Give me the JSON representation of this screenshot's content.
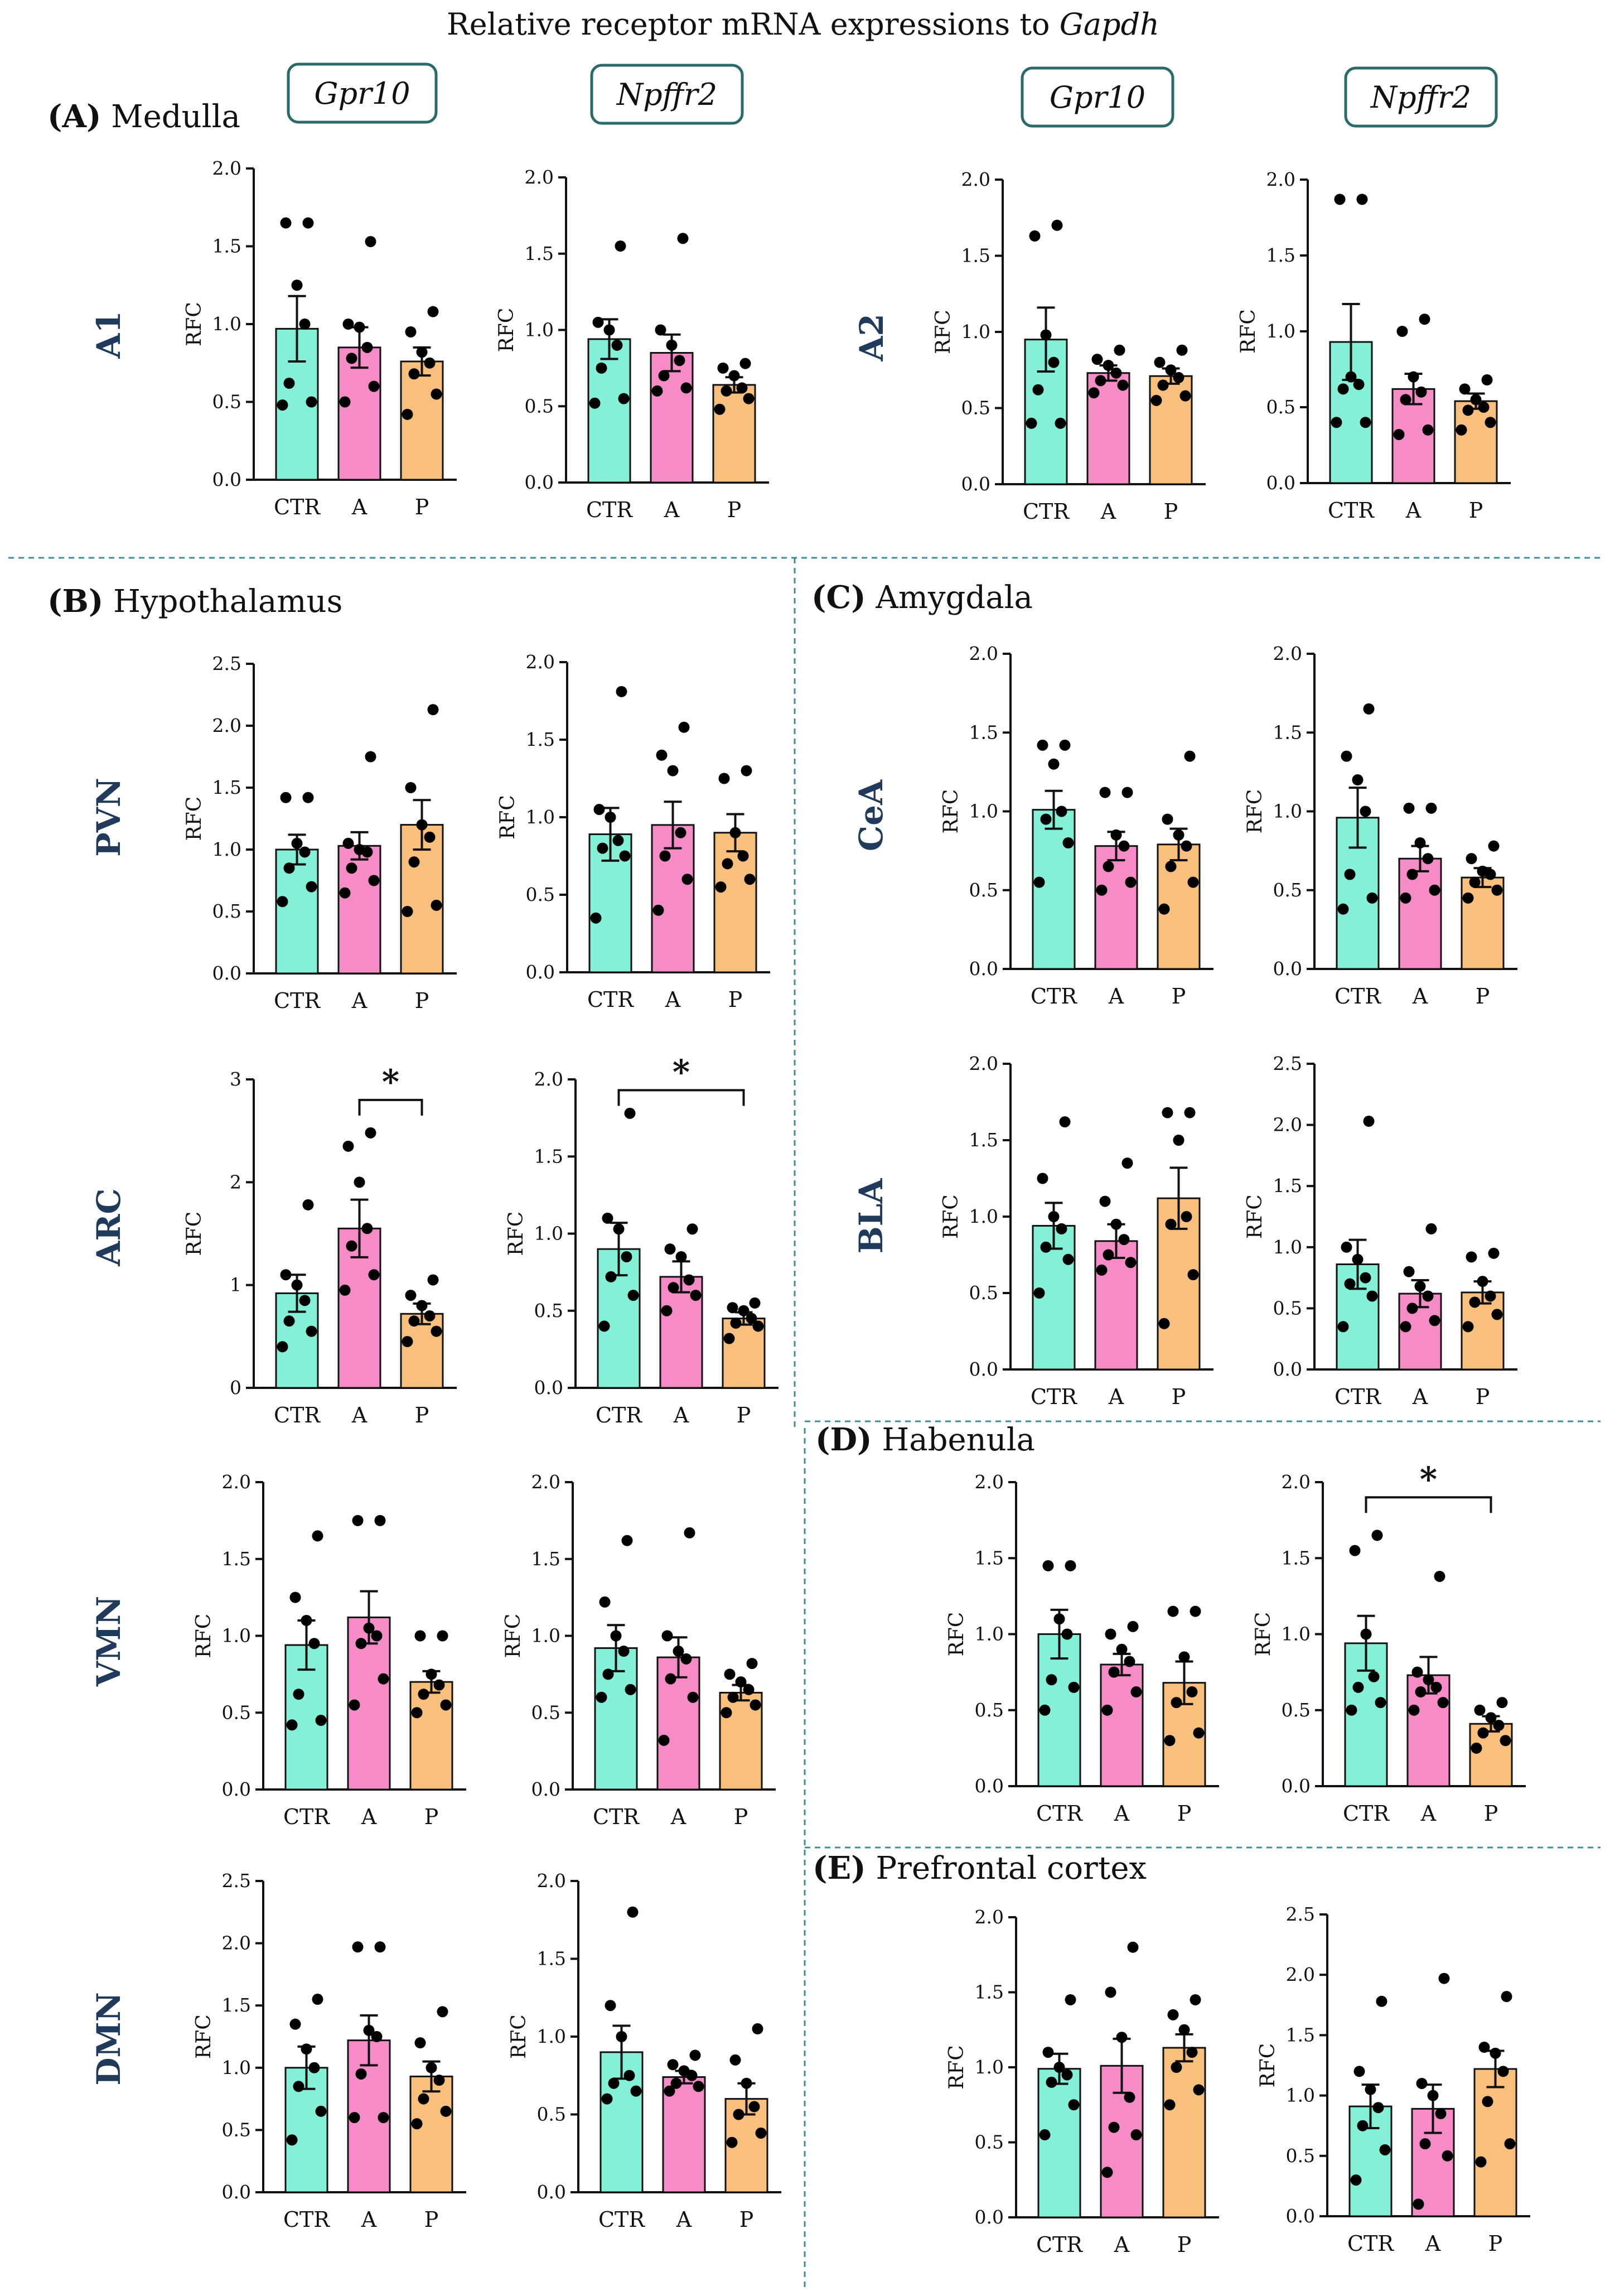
{
  "figure": {
    "title_prefix": "Relative receptor mRNA expressions to ",
    "title_gene": "Gapdh",
    "colors": {
      "ctr": "#84f0d8",
      "a": "#f58cc8",
      "p": "#f9bf7d",
      "box_border": "#2a6a6a",
      "divider": "#3d8c9a",
      "region": "#1f3a5a"
    },
    "gene_boxes": [
      "Gpr10",
      "Npffr2",
      "Gpr10",
      "Npffr2"
    ],
    "sections": [
      {
        "letter": "(A)",
        "name": "Medulla"
      },
      {
        "letter": "(B)",
        "name": "Hypothalamus"
      },
      {
        "letter": "(C)",
        "name": "Amygdala"
      },
      {
        "letter": "(D)",
        "name": "Habenula"
      },
      {
        "letter": "(E)",
        "name": "Prefrontal cortex"
      }
    ],
    "regions": [
      "A1",
      "A2",
      "PVN",
      "ARC",
      "VMN",
      "DMN",
      "CeA",
      "BLA"
    ]
  },
  "chart_data": [
    {
      "id": "A1-Gpr10",
      "type": "bar",
      "region": "A1",
      "gene": "Gpr10",
      "ylabel": "RFC",
      "ylim": [
        0,
        2.0
      ],
      "yticks": [
        "0.0",
        "0.5",
        "1.0",
        "1.5",
        "2.0"
      ],
      "categories": [
        "CTR",
        "A",
        "P"
      ],
      "values": [
        0.97,
        0.85,
        0.76
      ],
      "sem": [
        0.21,
        0.13,
        0.09
      ],
      "points": [
        [
          0.48,
          0.5,
          0.62,
          1.0,
          1.25,
          1.65,
          1.65
        ],
        [
          0.5,
          0.6,
          0.78,
          0.85,
          0.98,
          1.0,
          1.53
        ],
        [
          0.42,
          0.55,
          0.68,
          0.75,
          0.82,
          0.95,
          1.08
        ]
      ],
      "significance": null
    },
    {
      "id": "A1-Npffr2",
      "type": "bar",
      "region": "A1",
      "gene": "Npffr2",
      "ylabel": "RFC",
      "ylim": [
        0,
        2.0
      ],
      "yticks": [
        "0.0",
        "0.5",
        "1.0",
        "1.5",
        "2.0"
      ],
      "categories": [
        "CTR",
        "A",
        "P"
      ],
      "values": [
        0.94,
        0.85,
        0.64
      ],
      "sem": [
        0.13,
        0.12,
        0.05
      ],
      "points": [
        [
          0.52,
          0.55,
          0.75,
          0.9,
          1.0,
          1.05,
          1.55
        ],
        [
          0.6,
          0.62,
          0.7,
          0.8,
          0.9,
          1.0,
          1.6
        ],
        [
          0.48,
          0.55,
          0.6,
          0.62,
          0.7,
          0.75,
          0.78
        ]
      ],
      "significance": null
    },
    {
      "id": "A2-Gpr10",
      "type": "bar",
      "region": "A2",
      "gene": "Gpr10",
      "ylabel": "RFC",
      "ylim": [
        0,
        2.0
      ],
      "yticks": [
        "0.0",
        "0.5",
        "1.0",
        "1.5",
        "2.0"
      ],
      "categories": [
        "CTR",
        "A",
        "P"
      ],
      "values": [
        0.95,
        0.73,
        0.71
      ],
      "sem": [
        0.21,
        0.05,
        0.05
      ],
      "points": [
        [
          0.4,
          0.4,
          0.62,
          0.8,
          0.98,
          1.63,
          1.7
        ],
        [
          0.6,
          0.65,
          0.68,
          0.73,
          0.78,
          0.82,
          0.88
        ],
        [
          0.55,
          0.58,
          0.65,
          0.7,
          0.75,
          0.8,
          0.88
        ]
      ],
      "significance": null
    },
    {
      "id": "A2-Npffr2",
      "type": "bar",
      "region": "A2",
      "gene": "Npffr2",
      "ylabel": "RFC",
      "ylim": [
        0,
        2.0
      ],
      "yticks": [
        "0.0",
        "0.5",
        "1.0",
        "1.5",
        "2.0"
      ],
      "categories": [
        "CTR",
        "A",
        "P"
      ],
      "values": [
        0.93,
        0.62,
        0.54
      ],
      "sem": [
        0.25,
        0.1,
        0.05
      ],
      "points": [
        [
          0.4,
          0.4,
          0.62,
          0.65,
          0.7,
          1.87,
          1.87
        ],
        [
          0.32,
          0.35,
          0.55,
          0.6,
          0.7,
          1.0,
          1.08
        ],
        [
          0.35,
          0.4,
          0.48,
          0.5,
          0.55,
          0.62,
          0.68
        ]
      ],
      "significance": null
    },
    {
      "id": "PVN-Gpr10",
      "type": "bar",
      "region": "PVN",
      "gene": "Gpr10",
      "ylabel": "RFC",
      "ylim": [
        0,
        2.5
      ],
      "yticks": [
        "0.0",
        "0.5",
        "1.0",
        "1.5",
        "2.0",
        "2.5"
      ],
      "categories": [
        "CTR",
        "A",
        "P"
      ],
      "values": [
        1.0,
        1.03,
        1.2
      ],
      "sem": [
        0.12,
        0.11,
        0.2
      ],
      "points": [
        [
          0.58,
          0.7,
          0.85,
          0.98,
          1.05,
          1.42,
          1.42
        ],
        [
          0.65,
          0.75,
          0.85,
          0.98,
          1.0,
          1.05,
          1.75
        ],
        [
          0.5,
          0.55,
          0.9,
          1.1,
          1.2,
          1.5,
          2.13
        ]
      ],
      "significance": null
    },
    {
      "id": "PVN-Npffr2",
      "type": "bar",
      "region": "PVN",
      "gene": "Npffr2",
      "ylabel": "RFC",
      "ylim": [
        0,
        2.0
      ],
      "yticks": [
        "0.0",
        "0.5",
        "1.0",
        "1.5",
        "2.0"
      ],
      "categories": [
        "CTR",
        "A",
        "P"
      ],
      "values": [
        0.89,
        0.95,
        0.9
      ],
      "sem": [
        0.17,
        0.15,
        0.12
      ],
      "points": [
        [
          0.35,
          0.75,
          0.8,
          0.85,
          1.0,
          1.05,
          1.81
        ],
        [
          0.4,
          0.6,
          0.75,
          0.9,
          1.3,
          1.4,
          1.58
        ],
        [
          0.55,
          0.6,
          0.7,
          0.75,
          0.9,
          1.25,
          1.3
        ]
      ],
      "significance": null
    },
    {
      "id": "ARC-Gpr10",
      "type": "bar",
      "region": "ARC",
      "gene": "Gpr10",
      "ylabel": "RFC",
      "ylim": [
        0,
        3
      ],
      "yticks": [
        "0",
        "1",
        "2",
        "3"
      ],
      "categories": [
        "CTR",
        "A",
        "P"
      ],
      "values": [
        0.92,
        1.55,
        0.72
      ],
      "sem": [
        0.18,
        0.28,
        0.1
      ],
      "points": [
        [
          0.4,
          0.55,
          0.65,
          0.85,
          1.0,
          1.1,
          1.78
        ],
        [
          0.95,
          1.1,
          1.38,
          1.55,
          2.0,
          2.35,
          2.48
        ],
        [
          0.45,
          0.55,
          0.65,
          0.7,
          0.8,
          0.9,
          1.05
        ]
      ],
      "significance": {
        "from": 1,
        "to": 2,
        "label": "*",
        "level": 2.8
      }
    },
    {
      "id": "ARC-Npffr2",
      "type": "bar",
      "region": "ARC",
      "gene": "Npffr2",
      "ylabel": "RFC",
      "ylim": [
        0,
        2.0
      ],
      "yticks": [
        "0.0",
        "0.5",
        "1.0",
        "1.5",
        "2.0"
      ],
      "categories": [
        "CTR",
        "A",
        "P"
      ],
      "values": [
        0.9,
        0.72,
        0.45
      ],
      "sem": [
        0.17,
        0.1,
        0.04
      ],
      "points": [
        [
          0.4,
          0.6,
          0.72,
          0.85,
          1.03,
          1.1,
          1.78
        ],
        [
          0.5,
          0.6,
          0.65,
          0.7,
          0.85,
          0.9,
          1.03
        ],
        [
          0.32,
          0.4,
          0.42,
          0.45,
          0.5,
          0.52,
          0.55
        ]
      ],
      "significance": {
        "from": 0,
        "to": 2,
        "label": "*",
        "level": 1.93
      }
    },
    {
      "id": "VMN-Gpr10",
      "type": "bar",
      "region": "VMN",
      "gene": "Gpr10",
      "ylabel": "RFC",
      "ylim": [
        0,
        2.0
      ],
      "yticks": [
        "0.0",
        "0.5",
        "1.0",
        "1.5",
        "2.0"
      ],
      "categories": [
        "CTR",
        "A",
        "P"
      ],
      "values": [
        0.94,
        1.12,
        0.7
      ],
      "sem": [
        0.16,
        0.17,
        0.07
      ],
      "points": [
        [
          0.42,
          0.45,
          0.62,
          0.95,
          1.1,
          1.25,
          1.65
        ],
        [
          0.55,
          0.72,
          0.95,
          1.0,
          1.05,
          1.75,
          1.75
        ],
        [
          0.5,
          0.55,
          0.62,
          0.68,
          0.75,
          1.0,
          1.0
        ]
      ],
      "significance": null
    },
    {
      "id": "VMN-Npffr2",
      "type": "bar",
      "region": "VMN",
      "gene": "Npffr2",
      "ylabel": "RFC",
      "ylim": [
        0,
        2.0
      ],
      "yticks": [
        "0.0",
        "0.5",
        "1.0",
        "1.5",
        "2.0"
      ],
      "categories": [
        "CTR",
        "A",
        "P"
      ],
      "values": [
        0.92,
        0.86,
        0.63
      ],
      "sem": [
        0.15,
        0.13,
        0.05
      ],
      "points": [
        [
          0.6,
          0.65,
          0.75,
          0.9,
          1.0,
          1.22,
          1.62
        ],
        [
          0.32,
          0.6,
          0.72,
          0.85,
          0.9,
          1.0,
          1.67
        ],
        [
          0.5,
          0.55,
          0.6,
          0.65,
          0.7,
          0.75,
          0.82
        ]
      ],
      "significance": null
    },
    {
      "id": "DMN-Gpr10",
      "type": "bar",
      "region": "DMN",
      "gene": "Gpr10",
      "ylabel": "RFC",
      "ylim": [
        0,
        2.5
      ],
      "yticks": [
        "0.0",
        "0.5",
        "1.0",
        "1.5",
        "2.0",
        "2.5"
      ],
      "categories": [
        "CTR",
        "A",
        "P"
      ],
      "values": [
        1.0,
        1.22,
        0.93
      ],
      "sem": [
        0.17,
        0.2,
        0.12
      ],
      "points": [
        [
          0.42,
          0.65,
          0.85,
          1.0,
          1.15,
          1.35,
          1.55
        ],
        [
          0.6,
          0.6,
          0.95,
          1.25,
          1.3,
          1.97,
          1.97
        ],
        [
          0.55,
          0.65,
          0.75,
          0.9,
          1.0,
          1.2,
          1.45
        ]
      ],
      "significance": null
    },
    {
      "id": "DMN-Npffr2",
      "type": "bar",
      "region": "DMN",
      "gene": "Npffr2",
      "ylabel": "RFC",
      "ylim": [
        0,
        2.0
      ],
      "yticks": [
        "0.0",
        "0.5",
        "1.0",
        "1.5",
        "2.0"
      ],
      "categories": [
        "CTR",
        "A",
        "P"
      ],
      "values": [
        0.9,
        0.74,
        0.6
      ],
      "sem": [
        0.17,
        0.04,
        0.1
      ],
      "points": [
        [
          0.6,
          0.65,
          0.7,
          0.75,
          1.0,
          1.2,
          1.8
        ],
        [
          0.65,
          0.68,
          0.7,
          0.75,
          0.78,
          0.82,
          0.88
        ],
        [
          0.32,
          0.38,
          0.5,
          0.55,
          0.7,
          0.85,
          1.05
        ]
      ],
      "significance": null
    },
    {
      "id": "CeA-Gpr10",
      "type": "bar",
      "region": "CeA",
      "gene": "Gpr10",
      "ylabel": "RFC",
      "ylim": [
        0,
        2.0
      ],
      "yticks": [
        "0.0",
        "0.5",
        "1.0",
        "1.5",
        "2.0"
      ],
      "categories": [
        "CTR",
        "A",
        "P"
      ],
      "values": [
        1.01,
        0.78,
        0.79
      ],
      "sem": [
        0.12,
        0.09,
        0.1
      ],
      "points": [
        [
          0.55,
          0.8,
          0.95,
          1.0,
          1.3,
          1.42,
          1.42
        ],
        [
          0.5,
          0.55,
          0.65,
          0.78,
          0.85,
          1.12,
          1.12
        ],
        [
          0.38,
          0.55,
          0.65,
          0.78,
          0.85,
          0.95,
          1.35
        ]
      ],
      "significance": null
    },
    {
      "id": "CeA-Npffr2",
      "type": "bar",
      "region": "CeA",
      "gene": "Npffr2",
      "ylabel": "RFC",
      "ylim": [
        0,
        2.0
      ],
      "yticks": [
        "0.0",
        "0.5",
        "1.0",
        "1.5",
        "2.0"
      ],
      "categories": [
        "CTR",
        "A",
        "P"
      ],
      "values": [
        0.96,
        0.7,
        0.58
      ],
      "sem": [
        0.19,
        0.08,
        0.06
      ],
      "points": [
        [
          0.38,
          0.45,
          0.6,
          1.0,
          1.2,
          1.35,
          1.65
        ],
        [
          0.45,
          0.5,
          0.6,
          0.7,
          0.8,
          1.02,
          1.02
        ],
        [
          0.45,
          0.5,
          0.55,
          0.6,
          0.62,
          0.7,
          0.78
        ]
      ],
      "significance": null
    },
    {
      "id": "BLA-Gpr10",
      "type": "bar",
      "region": "BLA",
      "gene": "Gpr10",
      "ylabel": "RFC",
      "ylim": [
        0,
        2.0
      ],
      "yticks": [
        "0.0",
        "0.5",
        "1.0",
        "1.5",
        "2.0"
      ],
      "categories": [
        "CTR",
        "A",
        "P"
      ],
      "values": [
        0.94,
        0.84,
        1.12
      ],
      "sem": [
        0.15,
        0.11,
        0.2
      ],
      "points": [
        [
          0.5,
          0.72,
          0.8,
          0.92,
          1.0,
          1.25,
          1.62
        ],
        [
          0.65,
          0.7,
          0.75,
          0.85,
          0.95,
          1.1,
          1.35
        ],
        [
          0.3,
          0.62,
          0.95,
          1.0,
          1.5,
          1.68,
          1.68
        ]
      ],
      "significance": null
    },
    {
      "id": "BLA-Npffr2",
      "type": "bar",
      "region": "BLA",
      "gene": "Npffr2",
      "ylabel": "RFC",
      "ylim": [
        0,
        2.5
      ],
      "yticks": [
        "0.0",
        "0.5",
        "1.0",
        "1.5",
        "2.0",
        "2.5"
      ],
      "categories": [
        "CTR",
        "A",
        "P"
      ],
      "values": [
        0.86,
        0.62,
        0.63
      ],
      "sem": [
        0.2,
        0.11,
        0.09
      ],
      "points": [
        [
          0.35,
          0.6,
          0.7,
          0.75,
          0.9,
          1.0,
          2.03
        ],
        [
          0.35,
          0.4,
          0.5,
          0.6,
          0.68,
          0.8,
          1.15
        ],
        [
          0.35,
          0.45,
          0.55,
          0.6,
          0.72,
          0.92,
          0.95
        ]
      ],
      "significance": null
    },
    {
      "id": "Hab-Gpr10",
      "type": "bar",
      "region": "",
      "gene": "Gpr10",
      "ylabel": "RFC",
      "ylim": [
        0,
        2.0
      ],
      "yticks": [
        "0.0",
        "0.5",
        "1.0",
        "1.5",
        "2.0"
      ],
      "categories": [
        "CTR",
        "A",
        "P"
      ],
      "values": [
        1.0,
        0.8,
        0.68
      ],
      "sem": [
        0.16,
        0.07,
        0.14
      ],
      "points": [
        [
          0.5,
          0.65,
          0.7,
          1.0,
          1.1,
          1.45,
          1.45
        ],
        [
          0.5,
          0.62,
          0.75,
          0.82,
          0.9,
          1.0,
          1.05
        ],
        [
          0.3,
          0.35,
          0.55,
          0.62,
          0.85,
          1.15,
          1.15
        ]
      ],
      "significance": null
    },
    {
      "id": "Hab-Npffr2",
      "type": "bar",
      "region": "",
      "gene": "Npffr2",
      "ylabel": "RFC",
      "ylim": [
        0,
        2.0
      ],
      "yticks": [
        "0.0",
        "0.5",
        "1.0",
        "1.5",
        "2.0"
      ],
      "categories": [
        "CTR",
        "A",
        "P"
      ],
      "values": [
        0.94,
        0.73,
        0.41
      ],
      "sem": [
        0.18,
        0.12,
        0.05
      ],
      "points": [
        [
          0.5,
          0.55,
          0.65,
          0.72,
          1.0,
          1.55,
          1.65
        ],
        [
          0.5,
          0.55,
          0.62,
          0.65,
          0.7,
          0.75,
          1.38
        ],
        [
          0.25,
          0.3,
          0.35,
          0.4,
          0.45,
          0.5,
          0.55
        ]
      ],
      "significance": {
        "from": 0,
        "to": 2,
        "label": "*",
        "level": 1.9
      }
    },
    {
      "id": "PFC-Gpr10",
      "type": "bar",
      "region": "",
      "gene": "Gpr10",
      "ylabel": "RFC",
      "ylim": [
        0,
        2.0
      ],
      "yticks": [
        "0.0",
        "0.5",
        "1.0",
        "1.5",
        "2.0"
      ],
      "categories": [
        "CTR",
        "A",
        "P"
      ],
      "values": [
        0.99,
        1.01,
        1.13
      ],
      "sem": [
        0.1,
        0.18,
        0.09
      ],
      "points": [
        [
          0.55,
          0.75,
          0.9,
          0.95,
          1.0,
          1.1,
          1.45
        ],
        [
          0.3,
          0.55,
          0.6,
          0.8,
          1.2,
          1.5,
          1.8
        ],
        [
          0.75,
          0.85,
          1.0,
          1.1,
          1.25,
          1.35,
          1.45
        ]
      ],
      "significance": null
    },
    {
      "id": "PFC-Npffr2",
      "type": "bar",
      "region": "",
      "gene": "Npffr2",
      "ylabel": "RFC",
      "ylim": [
        0,
        2.5
      ],
      "yticks": [
        "0.0",
        "0.5",
        "1.0",
        "1.5",
        "2.0",
        "2.5"
      ],
      "categories": [
        "CTR",
        "A",
        "P"
      ],
      "values": [
        0.91,
        0.89,
        1.22
      ],
      "sem": [
        0.18,
        0.2,
        0.15
      ],
      "points": [
        [
          0.3,
          0.55,
          0.75,
          0.9,
          1.05,
          1.2,
          1.78
        ],
        [
          0.1,
          0.5,
          0.6,
          0.85,
          1.0,
          1.1,
          1.97
        ],
        [
          0.45,
          0.6,
          0.95,
          1.2,
          1.35,
          1.4,
          1.82
        ]
      ],
      "significance": null
    }
  ]
}
